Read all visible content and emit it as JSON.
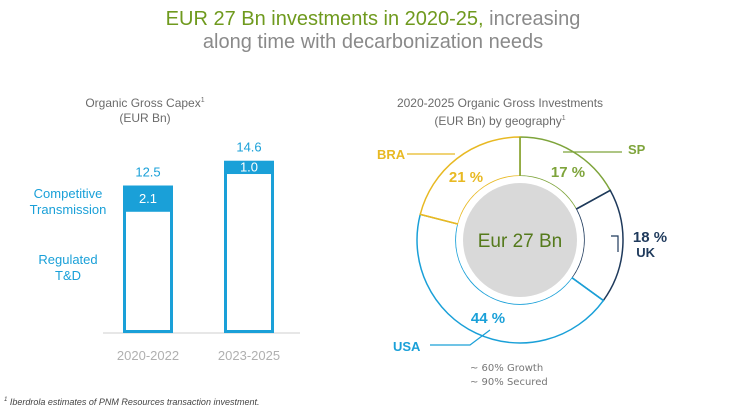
{
  "title": {
    "highlight": "EUR 27 Bn investments in 2020-25,",
    "rest_line1": "increasing",
    "line2": "along time with decarbonization needs"
  },
  "colors": {
    "accent_green": "#6f9a1e",
    "blue": "#1aa0d8",
    "navy": "#1f3a5c",
    "gold": "#e8b923",
    "sp_green": "#7ea43b",
    "center": "#d9d9d9"
  },
  "chart_data": [
    {
      "type": "bar",
      "subtitle_line1": "Organic Gross Capex",
      "subtitle_sup": "1",
      "subtitle_line2": "(EUR Bn)",
      "categories": [
        "2020-2022",
        "2023-2025"
      ],
      "series": [
        {
          "name": "Regulated T&D",
          "values": [
            10.4,
            13.6
          ]
        },
        {
          "name": "Competitive Transmission",
          "values": [
            2.1,
            1.0
          ]
        }
      ],
      "totals": [
        12.5,
        14.6
      ],
      "total_labels": [
        "12.5",
        "14.6"
      ],
      "segment_labels": [
        "2.1",
        "1.0"
      ],
      "legend": {
        "competitive_l1": "Competitive",
        "competitive_l2": "Transmission",
        "regulated_l1": "Regulated",
        "regulated_l2": "T&D"
      }
    },
    {
      "type": "pie",
      "subtitle_line1": "2020-2025 Organic Gross Investments",
      "subtitle_line2": "(EUR Bn) by geography",
      "subtitle_sup": "1",
      "center_label": "Eur 27 Bn",
      "slices": [
        {
          "label": "SP",
          "value": 17,
          "text": "17 %",
          "color": "#7ea43b"
        },
        {
          "label": "UK",
          "value": 18,
          "text": "18 %",
          "color": "#1f3a5c"
        },
        {
          "label": "USA",
          "value": 44,
          "text": "44 %",
          "color": "#1aa0d8"
        },
        {
          "label": "BRA",
          "value": 21,
          "text": "21 %",
          "color": "#e8b923"
        }
      ],
      "notes": [
        "~ 60% Growth",
        "~ 90% Secured"
      ]
    }
  ],
  "footnote": {
    "sup": "1",
    "text": "Iberdrola estimates of PNM Resources transaction investment."
  }
}
